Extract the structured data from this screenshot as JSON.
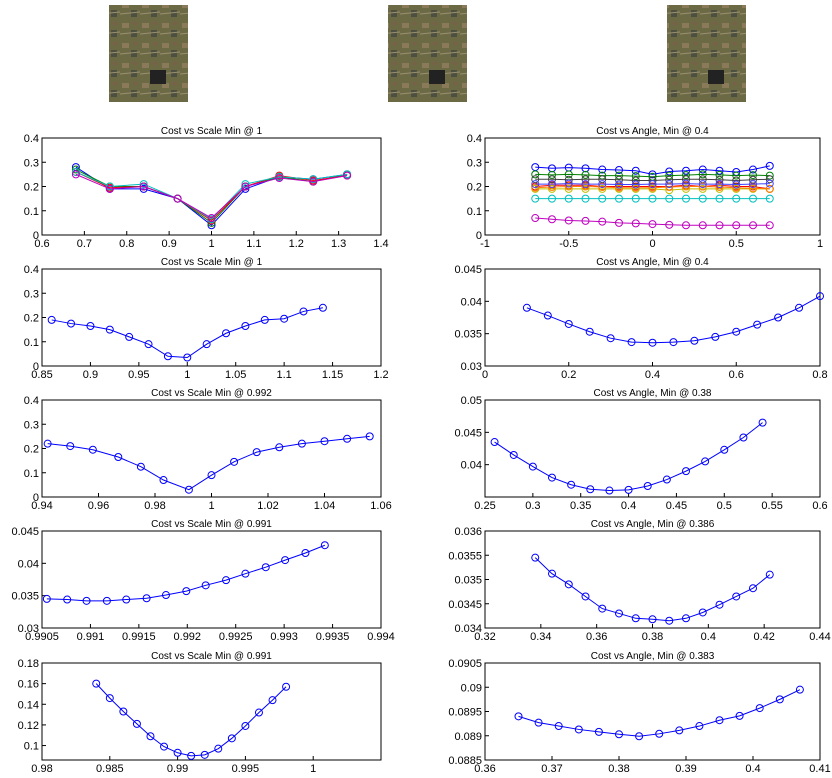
{
  "chart_data": [
    {
      "type": "line",
      "title": "Cost vs Scale Min @ 1",
      "marker": "circle",
      "x": [
        0.68,
        0.76,
        0.84,
        0.92,
        1.0,
        1.08,
        1.16,
        1.24,
        1.32
      ],
      "series": [
        {
          "color": "#0000ff",
          "values": [
            0.28,
            0.19,
            0.19,
            0.15,
            0.04,
            0.19,
            0.24,
            0.23,
            0.25
          ]
        },
        {
          "color": "#008000",
          "values": [
            0.27,
            0.2,
            0.2,
            0.15,
            0.05,
            0.2,
            0.24,
            0.22,
            0.25
          ]
        },
        {
          "color": "#ff0000",
          "values": [
            0.26,
            0.195,
            0.2,
            0.15,
            0.06,
            0.2,
            0.245,
            0.225,
            0.245
          ]
        },
        {
          "color": "#00bfbf",
          "values": [
            0.26,
            0.2,
            0.21,
            0.15,
            0.065,
            0.21,
            0.24,
            0.23,
            0.25
          ]
        },
        {
          "color": "#bf00bf",
          "values": [
            0.25,
            0.19,
            0.2,
            0.15,
            0.07,
            0.2,
            0.235,
            0.22,
            0.245
          ]
        }
      ],
      "xlim": [
        0.6,
        1.4
      ],
      "xticks": [
        0.6,
        0.7,
        0.8,
        0.9,
        1,
        1.1,
        1.2,
        1.3,
        1.4
      ],
      "ylim": [
        0,
        0.4
      ],
      "yticks": [
        0,
        0.1,
        0.2,
        0.3,
        0.4
      ]
    },
    {
      "type": "line",
      "title": "Cost vs Angle, Min @ 0.4",
      "marker": "circle",
      "x": [
        -0.7,
        -0.6,
        -0.5,
        -0.4,
        -0.3,
        -0.2,
        -0.1,
        0,
        0.1,
        0.2,
        0.3,
        0.4,
        0.5,
        0.6,
        0.7
      ],
      "series": [
        {
          "color": "#0000ff",
          "values": [
            0.28,
            0.275,
            0.278,
            0.275,
            0.27,
            0.268,
            0.265,
            0.25,
            0.262,
            0.265,
            0.27,
            0.265,
            0.26,
            0.27,
            0.285
          ]
        },
        {
          "color": "#008000",
          "values": [
            0.25,
            0.248,
            0.25,
            0.248,
            0.245,
            0.245,
            0.243,
            0.24,
            0.245,
            0.247,
            0.25,
            0.248,
            0.245,
            0.247,
            0.245
          ]
        },
        {
          "color": "#ff0000",
          "values": [
            0.2,
            0.205,
            0.205,
            0.205,
            0.2,
            0.2,
            0.2,
            0.2,
            0.2,
            0.205,
            0.2,
            0.205,
            0.2,
            0.2,
            0.19
          ]
        },
        {
          "color": "#00bfbf",
          "values": [
            0.15,
            0.15,
            0.15,
            0.15,
            0.15,
            0.15,
            0.15,
            0.15,
            0.15,
            0.15,
            0.15,
            0.15,
            0.15,
            0.15,
            0.15
          ]
        },
        {
          "color": "#bf00bf",
          "values": [
            0.07,
            0.065,
            0.06,
            0.058,
            0.055,
            0.05,
            0.048,
            0.045,
            0.042,
            0.04,
            0.04,
            0.04,
            0.04,
            0.04,
            0.04
          ]
        },
        {
          "color": "#bfbf00",
          "values": [
            0.19,
            0.19,
            0.19,
            0.19,
            0.19,
            0.19,
            0.19,
            0.19,
            0.185,
            0.19,
            0.19,
            0.19,
            0.19,
            0.19,
            0.19
          ]
        },
        {
          "color": "#404040",
          "values": [
            0.23,
            0.23,
            0.228,
            0.23,
            0.23,
            0.228,
            0.225,
            0.225,
            0.228,
            0.23,
            0.23,
            0.228,
            0.225,
            0.228,
            0.23
          ]
        },
        {
          "color": "#ff8000",
          "values": [
            0.195,
            0.198,
            0.2,
            0.2,
            0.198,
            0.195,
            0.195,
            0.195,
            0.198,
            0.2,
            0.2,
            0.198,
            0.195,
            0.193,
            0.19
          ]
        },
        {
          "color": "#4040ff",
          "values": [
            0.21,
            0.21,
            0.212,
            0.21,
            0.21,
            0.208,
            0.208,
            0.21,
            0.21,
            0.212,
            0.21,
            0.21,
            0.208,
            0.21,
            0.212
          ]
        }
      ],
      "xlim": [
        -1,
        1
      ],
      "xticks": [
        -1,
        -0.5,
        0,
        0.5,
        1
      ],
      "ylim": [
        0,
        0.4
      ],
      "yticks": [
        0,
        0.1,
        0.2,
        0.3,
        0.4
      ]
    },
    {
      "type": "line",
      "title": "Cost vs Scale Min @ 1",
      "marker": "circle",
      "x": [
        0.86,
        0.88,
        0.9,
        0.92,
        0.94,
        0.96,
        0.98,
        1.0,
        1.02,
        1.04,
        1.06,
        1.08,
        1.1,
        1.12,
        1.14
      ],
      "series": [
        {
          "color": "#0000ff",
          "values": [
            0.19,
            0.175,
            0.165,
            0.15,
            0.12,
            0.09,
            0.04,
            0.035,
            0.09,
            0.135,
            0.165,
            0.19,
            0.195,
            0.225,
            0.24
          ]
        }
      ],
      "xlim": [
        0.85,
        1.2
      ],
      "xticks": [
        0.85,
        0.9,
        0.95,
        1,
        1.05,
        1.1,
        1.15,
        1.2
      ],
      "ylim": [
        0,
        0.4
      ],
      "yticks": [
        0,
        0.1,
        0.2,
        0.3,
        0.4
      ]
    },
    {
      "type": "line",
      "title": "Cost vs Angle, Min @ 0.4",
      "marker": "circle",
      "x": [
        0.1,
        0.15,
        0.2,
        0.25,
        0.3,
        0.35,
        0.4,
        0.45,
        0.5,
        0.55,
        0.6,
        0.65,
        0.7,
        0.75,
        0.8
      ],
      "series": [
        {
          "color": "#0000ff",
          "values": [
            0.039,
            0.0378,
            0.0365,
            0.0353,
            0.0343,
            0.0337,
            0.0336,
            0.0337,
            0.0339,
            0.0345,
            0.0353,
            0.0364,
            0.0375,
            0.039,
            0.0408
          ]
        }
      ],
      "xlim": [
        0,
        0.8
      ],
      "xticks": [
        0,
        0.2,
        0.4,
        0.6,
        0.8
      ],
      "ylim": [
        0.03,
        0.045
      ],
      "yticks": [
        0.03,
        0.035,
        0.04,
        0.045
      ]
    },
    {
      "type": "line",
      "title": "Cost vs Scale Min @ 0.992",
      "marker": "circle",
      "x": [
        0.942,
        0.95,
        0.958,
        0.967,
        0.975,
        0.983,
        0.992,
        1.0,
        1.008,
        1.016,
        1.024,
        1.032,
        1.04,
        1.048,
        1.056
      ],
      "series": [
        {
          "color": "#0000ff",
          "values": [
            0.22,
            0.21,
            0.195,
            0.165,
            0.125,
            0.07,
            0.03,
            0.09,
            0.145,
            0.185,
            0.205,
            0.22,
            0.23,
            0.24,
            0.25
          ]
        }
      ],
      "xlim": [
        0.94,
        1.06
      ],
      "xticks": [
        0.94,
        0.96,
        0.98,
        1,
        1.02,
        1.04,
        1.06
      ],
      "ylim": [
        0,
        0.4
      ],
      "yticks": [
        0,
        0.1,
        0.2,
        0.3,
        0.4
      ]
    },
    {
      "type": "line",
      "title": "Cost vs Angle, Min @ 0.38",
      "marker": "circle",
      "x": [
        0.26,
        0.28,
        0.3,
        0.32,
        0.34,
        0.36,
        0.38,
        0.4,
        0.42,
        0.44,
        0.46,
        0.48,
        0.5,
        0.52,
        0.54
      ],
      "series": [
        {
          "color": "#0000ff",
          "values": [
            0.0435,
            0.0415,
            0.0397,
            0.038,
            0.0369,
            0.0362,
            0.036,
            0.0361,
            0.0367,
            0.0377,
            0.039,
            0.0405,
            0.0423,
            0.0442,
            0.0465
          ]
        }
      ],
      "xlim": [
        0.25,
        0.6
      ],
      "xticks": [
        0.25,
        0.3,
        0.35,
        0.4,
        0.45,
        0.5,
        0.55,
        0.6
      ],
      "ylim": [
        0.035,
        0.05
      ],
      "yticks": [
        0.04,
        0.045,
        0.05
      ]
    },
    {
      "type": "line",
      "title": "Cost vs Scale Min @ 0.991",
      "marker": "circle",
      "x": [
        0.99055,
        0.99076,
        0.99096,
        0.99117,
        0.99137,
        0.99158,
        0.99178,
        0.99199,
        0.99219,
        0.9924,
        0.9926,
        0.99281,
        0.99301,
        0.99322,
        0.99342
      ],
      "series": [
        {
          "color": "#0000ff",
          "values": [
            0.0345,
            0.0344,
            0.0342,
            0.0342,
            0.0344,
            0.0346,
            0.0351,
            0.0357,
            0.0366,
            0.0374,
            0.0384,
            0.0394,
            0.0405,
            0.0416,
            0.0428
          ]
        }
      ],
      "xlim": [
        0.9905,
        0.994
      ],
      "xticks": [
        0.9905,
        0.991,
        0.9915,
        0.992,
        0.9925,
        0.993,
        0.9935,
        0.994
      ],
      "ylim": [
        0.03,
        0.045
      ],
      "yticks": [
        0.03,
        0.035,
        0.04,
        0.045
      ]
    },
    {
      "type": "line",
      "title": "Cost vs Angle, Min @ 0.386",
      "marker": "circle",
      "x": [
        0.338,
        0.344,
        0.35,
        0.356,
        0.362,
        0.368,
        0.374,
        0.38,
        0.386,
        0.392,
        0.398,
        0.404,
        0.41,
        0.416,
        0.422
      ],
      "series": [
        {
          "color": "#0000ff",
          "values": [
            0.03545,
            0.03512,
            0.0349,
            0.03465,
            0.0344,
            0.0343,
            0.0342,
            0.03418,
            0.03415,
            0.0342,
            0.03432,
            0.03448,
            0.03465,
            0.03482,
            0.0351
          ]
        }
      ],
      "xlim": [
        0.32,
        0.44
      ],
      "xticks": [
        0.32,
        0.34,
        0.36,
        0.38,
        0.4,
        0.42,
        0.44
      ],
      "ylim": [
        0.034,
        0.036
      ],
      "yticks": [
        0.034,
        0.0345,
        0.035,
        0.0355,
        0.036
      ]
    },
    {
      "type": "line",
      "title": "Cost vs Scale Min @ 0.991",
      "marker": "circle",
      "x": [
        0.984,
        0.985,
        0.986,
        0.987,
        0.988,
        0.989,
        0.99,
        0.991,
        0.992,
        0.993,
        0.994,
        0.995,
        0.996,
        0.997,
        0.998
      ],
      "series": [
        {
          "color": "#0000ff",
          "values": [
            0.16,
            0.146,
            0.133,
            0.121,
            0.109,
            0.099,
            0.093,
            0.09,
            0.091,
            0.097,
            0.107,
            0.119,
            0.132,
            0.144,
            0.157
          ]
        }
      ],
      "xlim": [
        0.98,
        1.005
      ],
      "xticks": [
        0.98,
        0.985,
        0.99,
        0.995,
        1
      ],
      "ylim": [
        0.086,
        0.18
      ],
      "yticks": [
        0.1,
        0.12,
        0.14,
        0.16,
        0.18
      ]
    },
    {
      "type": "line",
      "title": "Cost vs Angle, Min @ 0.383",
      "marker": "circle",
      "x": [
        0.365,
        0.368,
        0.371,
        0.374,
        0.377,
        0.38,
        0.383,
        0.386,
        0.389,
        0.392,
        0.395,
        0.398,
        0.401,
        0.404,
        0.407
      ],
      "series": [
        {
          "color": "#0000ff",
          "values": [
            0.0894,
            0.08927,
            0.0892,
            0.08913,
            0.08908,
            0.08903,
            0.08899,
            0.08904,
            0.08911,
            0.0892,
            0.08932,
            0.08941,
            0.08957,
            0.08975,
            0.08995
          ]
        }
      ],
      "xlim": [
        0.36,
        0.41
      ],
      "xticks": [
        0.36,
        0.37,
        0.38,
        0.39,
        0.4,
        0.41
      ],
      "ylim": [
        0.0885,
        0.0905
      ],
      "yticks": [
        0.0885,
        0.089,
        0.0895,
        0.09,
        0.0905
      ]
    }
  ]
}
